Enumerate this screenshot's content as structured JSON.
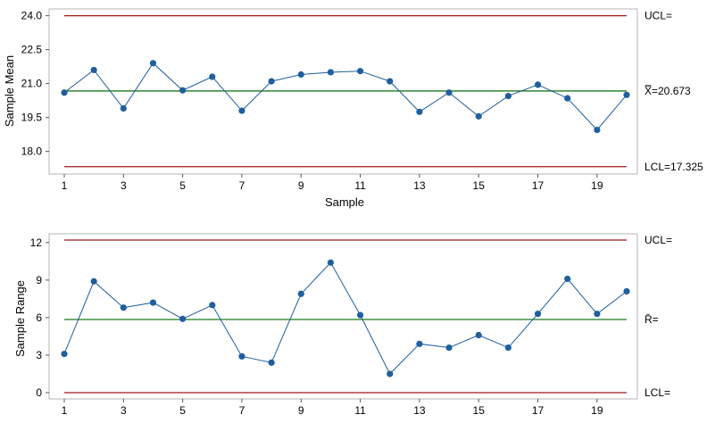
{
  "chart_data": [
    {
      "type": "line",
      "title": "",
      "xlabel": "Sample",
      "ylabel": "Sample Mean",
      "ylim": [
        17.0,
        24.3
      ],
      "yticks": [
        "24.0",
        "22.5",
        "21.0",
        "19.5",
        "18.0"
      ],
      "ytick_values": [
        24.0,
        22.5,
        21.0,
        19.5,
        18.0
      ],
      "xticks": [
        "1",
        "3",
        "5",
        "7",
        "9",
        "11",
        "13",
        "15",
        "17",
        "19"
      ],
      "x": [
        1,
        2,
        3,
        4,
        5,
        6,
        7,
        8,
        9,
        10,
        11,
        12,
        13,
        14,
        15,
        16,
        17,
        18,
        19,
        20
      ],
      "values": [
        20.6,
        21.6,
        19.9,
        21.9,
        20.7,
        21.3,
        19.8,
        21.1,
        21.4,
        21.5,
        21.55,
        21.1,
        19.75,
        20.6,
        19.55,
        20.45,
        20.95,
        20.35,
        18.95,
        20.5
      ],
      "ucl": 24.0,
      "center": 20.673,
      "lcl": 17.325,
      "ucl_label": "UCL=",
      "center_label": "X̿=20.673",
      "lcl_label": "LCL=17.325",
      "grid": false,
      "colors": {
        "series": "#1f5f9e",
        "limit": "#a01818",
        "center": "#1c7a1c"
      }
    },
    {
      "type": "line",
      "title": "",
      "xlabel": "",
      "ylabel": "Sample Range",
      "ylim": [
        -0.5,
        12.7
      ],
      "yticks": [
        "12",
        "9",
        "6",
        "3",
        "0"
      ],
      "ytick_values": [
        12,
        9,
        6,
        3,
        0
      ],
      "xticks": [
        "1",
        "3",
        "5",
        "7",
        "9",
        "11",
        "13",
        "15",
        "17",
        "19"
      ],
      "x": [
        1,
        2,
        3,
        4,
        5,
        6,
        7,
        8,
        9,
        10,
        11,
        12,
        13,
        14,
        15,
        16,
        17,
        18,
        19,
        20
      ],
      "values": [
        3.1,
        8.9,
        6.8,
        7.2,
        5.9,
        7.0,
        2.9,
        2.4,
        7.9,
        10.4,
        6.2,
        1.5,
        3.9,
        3.6,
        4.6,
        3.6,
        6.3,
        9.1,
        6.3,
        8.1
      ],
      "ucl": 12.2,
      "center": 5.85,
      "lcl": 0,
      "ucl_label": "UCL=",
      "center_label": "R̄=",
      "lcl_label": "LCL=",
      "grid": false,
      "colors": {
        "series": "#1f5f9e",
        "limit": "#a01818",
        "center": "#1c7a1c"
      }
    }
  ]
}
